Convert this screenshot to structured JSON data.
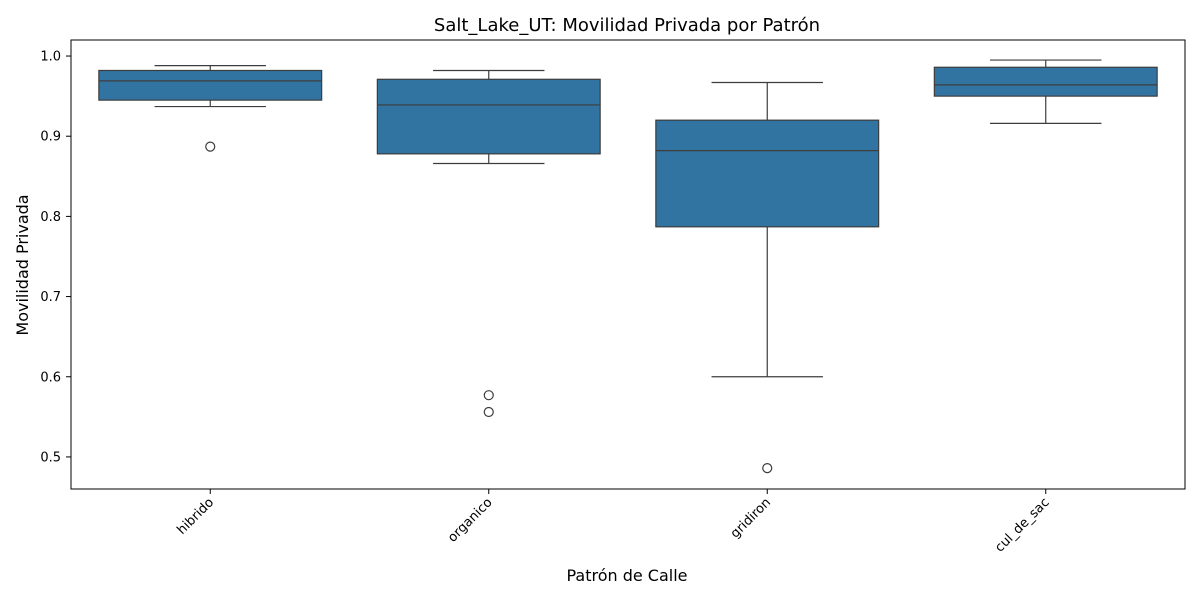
{
  "chart_data": {
    "type": "box",
    "title": "Salt_Lake_UT: Movilidad Privada por Patrón",
    "xlabel": "Patrón de Calle",
    "ylabel": "Movilidad Privada",
    "ylim": [
      0.46,
      1.02
    ],
    "yticks": [
      "0.5",
      "0.6",
      "0.7",
      "0.8",
      "0.9",
      "1.0"
    ],
    "categories": [
      "hibrido",
      "organico",
      "gridiron",
      "cul_de_sac"
    ],
    "boxes": [
      {
        "category": "hibrido",
        "whisker_low": 0.937,
        "q1": 0.945,
        "median": 0.969,
        "q3": 0.982,
        "whisker_high": 0.988,
        "outliers": [
          0.887
        ]
      },
      {
        "category": "organico",
        "whisker_low": 0.866,
        "q1": 0.878,
        "median": 0.939,
        "q3": 0.971,
        "whisker_high": 0.982,
        "outliers": [
          0.577,
          0.556
        ]
      },
      {
        "category": "gridiron",
        "whisker_low": 0.6,
        "q1": 0.787,
        "median": 0.882,
        "q3": 0.92,
        "whisker_high": 0.967,
        "outliers": [
          0.486
        ]
      },
      {
        "category": "cul_de_sac",
        "whisker_low": 0.916,
        "q1": 0.95,
        "median": 0.964,
        "q3": 0.986,
        "whisker_high": 0.995,
        "outliers": []
      }
    ],
    "box_color": "#3274a1",
    "line_color": "#3d3d3d",
    "grid": false,
    "legend": "none"
  }
}
